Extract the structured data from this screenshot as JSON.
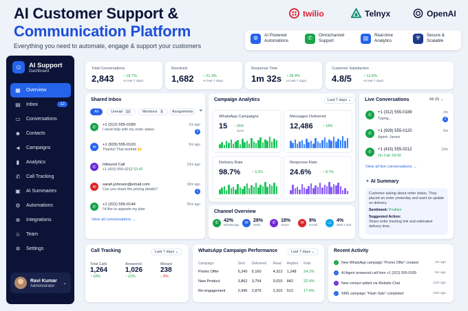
{
  "header": {
    "title_line1": "AI Customer Support &",
    "title_line2": "Communication Platform",
    "subtitle": "Everything you need to automate, engage & support your customers",
    "brands": [
      {
        "name": "twilio",
        "icon": "twilio-logo",
        "color": "#e11d2e"
      },
      {
        "name": "Telnyx",
        "icon": "telnyx-logo",
        "color": "#0b8a6f"
      },
      {
        "name": "OpenAI",
        "icon": "openai-logo",
        "color": "#0b1437"
      }
    ],
    "features": [
      {
        "label": "AI Powered\nAutomations",
        "icon": "robot-icon",
        "color": "#2563eb"
      },
      {
        "label": "Omnichannel\nSupport",
        "icon": "chat-icon",
        "color": "#16a34a"
      },
      {
        "label": "Real-time\nAnalytics",
        "icon": "chart-icon",
        "color": "#2563eb"
      },
      {
        "label": "Secure &\nScalable",
        "icon": "shield-icon",
        "color": "#1e3a8a"
      }
    ]
  },
  "sidebar": {
    "app_name": "AI Support",
    "subtitle": "Dashboard",
    "items": [
      {
        "label": "Overview",
        "icon": "grid-icon",
        "active": true
      },
      {
        "label": "Inbox",
        "icon": "inbox-icon",
        "badge": "12"
      },
      {
        "label": "Conversations",
        "icon": "chat-bubble-icon"
      },
      {
        "label": "Contacts",
        "icon": "people-icon"
      },
      {
        "label": "Campaigns",
        "icon": "megaphone-icon"
      },
      {
        "label": "Analytics",
        "icon": "bar-chart-icon"
      },
      {
        "label": "Call Tracking",
        "icon": "phone-icon"
      },
      {
        "label": "AI Summaries",
        "icon": "ai-doc-icon"
      },
      {
        "label": "Automations",
        "icon": "workflow-icon"
      },
      {
        "label": "Integrations",
        "icon": "plug-icon"
      },
      {
        "label": "Team",
        "icon": "team-icon"
      },
      {
        "label": "Settings",
        "icon": "gear-icon"
      }
    ],
    "user": {
      "name": "Ravi Kumar",
      "role": "Administrator"
    }
  },
  "stats": [
    {
      "label": "Total Conversations",
      "value": "2,843",
      "change": "↑ 18.7%",
      "sub": "vs last 7 days"
    },
    {
      "label": "Resolved",
      "value": "1,682",
      "change": "↑ 21.3%",
      "sub": "vs last 7 days"
    },
    {
      "label": "Response Time",
      "value": "1m 32s",
      "change": "↑ 28.4%",
      "sub": "vs last 7 days"
    },
    {
      "label": "Customer Satisfaction",
      "value": "4.8/5",
      "change": "↑ 12.6%",
      "sub": "vs last 7 days"
    }
  ],
  "inbox": {
    "title": "Shared Inbox",
    "filters": [
      {
        "label": "All"
      },
      {
        "label": "Unread",
        "count": "12"
      },
      {
        "label": "Mentions",
        "count": "3"
      },
      {
        "label": "Assignments",
        "count": "8"
      }
    ],
    "items": [
      {
        "name": "+1 (312) 555-0189",
        "msg": "I need help with my order status",
        "time": "2m ago",
        "badge": "2",
        "color": "#16a34a",
        "icon": "whatsapp-icon"
      },
      {
        "name": "+1 (929) 555-0120",
        "msg": "Thanks! That worked 🙌",
        "time": "5m ago",
        "color": "#2563eb",
        "icon": "sms-icon"
      },
      {
        "name": "Inbound Call",
        "msg": "+1 (415) 555-0212",
        "extra": "03:42",
        "time": "10m ago",
        "color": "#6d28d9",
        "icon": "phone-icon"
      },
      {
        "name": "sarah.johnson@email.com",
        "msg": "Can you share the pricing details?",
        "time": "18m ago",
        "badge": "1",
        "color": "#dc2626",
        "icon": "email-icon"
      },
      {
        "name": "+1 (201) 555-0144",
        "msg": "I'd like to upgrade my plan",
        "time": "25m ago",
        "color": "#16a34a",
        "icon": "whatsapp-icon"
      }
    ],
    "view_all": "View all conversations →"
  },
  "campaign": {
    "title": "Campaign Analytics",
    "range": "Last 7 days",
    "metrics": [
      {
        "label": "WhatsApp Campaigns",
        "value": "15",
        "change": "↑ 25%",
        "sub": "Sent",
        "bar_color": "#22c55e"
      },
      {
        "label": "Messages Delivered",
        "value": "12,486",
        "change": "↑ 18%",
        "sub": "",
        "bar_color": "#3b82f6"
      },
      {
        "label": "Delivery Rate",
        "value": "98.7%",
        "change": "↑ 3.2%",
        "sub": "",
        "bar_color": "#22c55e"
      },
      {
        "label": "Response Rate",
        "value": "24.6%",
        "change": "↑ 8.7%",
        "sub": "",
        "bar_color": "#8b5cf6"
      }
    ]
  },
  "channel": {
    "title": "Channel Overview",
    "items": [
      {
        "value": "42%",
        "name": "WhatsApp",
        "color": "#16a34a",
        "icon": "whatsapp-icon"
      },
      {
        "value": "28%",
        "name": "SMS",
        "color": "#2563eb",
        "icon": "sms-icon"
      },
      {
        "value": "18%",
        "name": "Voice",
        "color": "#6d28d9",
        "icon": "phone-icon"
      },
      {
        "value": "8%",
        "name": "Email",
        "color": "#dc2626",
        "icon": "email-icon"
      },
      {
        "value": "4%",
        "name": "Web Chat",
        "color": "#0ea5e9",
        "icon": "webchat-icon"
      }
    ]
  },
  "live": {
    "title": "Live Conversations",
    "filter": "All (6)",
    "items": [
      {
        "name": "+1 (312) 555-0189",
        "status": "Typing...",
        "time": "2m",
        "badge": "2"
      },
      {
        "name": "+1 (929) 555-0120",
        "status": "Agent: James",
        "time": "5m"
      },
      {
        "name": "+1 (415) 555-0212",
        "status": "On Call: 03:42",
        "time": "10m"
      }
    ],
    "view_all": "View all live conversations →"
  },
  "summary": {
    "title": "AI Summary",
    "text": "Customer asking about order status. They placed an order yesterday and want an update on delivery.",
    "sentiment_label": "Sentiment:",
    "sentiment": "Positive",
    "action_label": "Suggested Action:",
    "action": "Share order tracking link and estimated delivery time."
  },
  "calls": {
    "title": "Call Tracking",
    "range": "Last 7 days",
    "items": [
      {
        "label": "Total Calls",
        "value": "1,264",
        "change": "↑ 18%",
        "color": "#16a34a"
      },
      {
        "label": "Answered",
        "value": "1,026",
        "change": "↑ 22%",
        "color": "#16a34a"
      },
      {
        "label": "Missed",
        "value": "238",
        "change": "↓ 8%",
        "color": "#dc2626"
      }
    ]
  },
  "whatsapp_perf": {
    "title": "WhatsApp Campaign Performance",
    "range": "Last 7 days",
    "columns": [
      "Campaign",
      "Sent",
      "Delivered",
      "Read",
      "Replies",
      "Rate"
    ],
    "rows": [
      [
        "Promo Offer",
        "5,240",
        "5,160",
        "4,312",
        "1,248",
        "24.1%"
      ],
      [
        "New Product",
        "3,862",
        "3,754",
        "3,010",
        "842",
        "22.4%"
      ],
      [
        "Re-engagement",
        "2,945",
        "2,876",
        "2,310",
        "512",
        "17.4%"
      ]
    ]
  },
  "activity": {
    "title": "Recent Activity",
    "items": [
      {
        "text": "New WhatsApp campaign \"Promo Offer\" created",
        "time": "2m ago"
      },
      {
        "text": "AI Agent answered call from +1 (312) 555-0189",
        "time": "5m ago"
      },
      {
        "text": "New contact added via Website Chat",
        "time": "12m ago"
      },
      {
        "text": "SMS campaign \"Flash Sale\" completed",
        "time": "18m ago"
      }
    ]
  }
}
